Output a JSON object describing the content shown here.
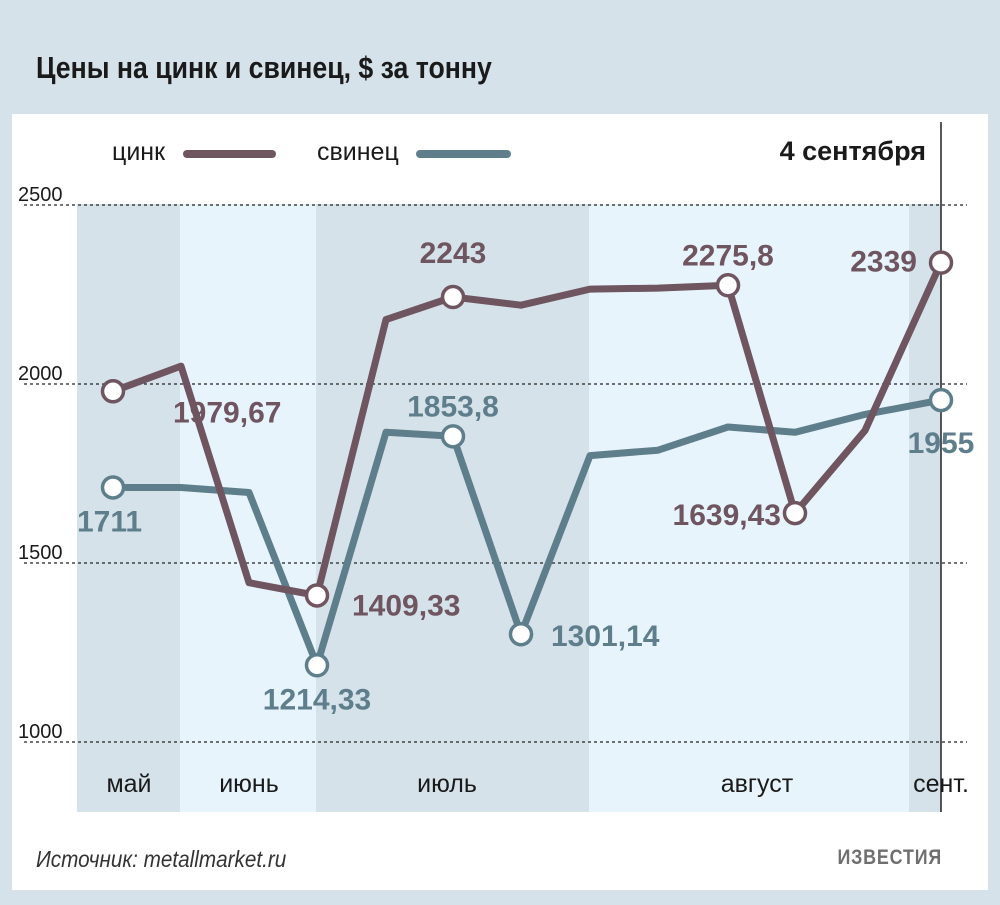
{
  "title": "Цены на цинк и свинец, $ за тонну",
  "source": "Источник: metallmarket.ru",
  "logo": "ИЗВЕСТИЯ",
  "colors": {
    "zinc": "#6e5560",
    "lead": "#5f7e8c",
    "band_dark": "#d6e2ea",
    "band_light": "#e8f4fb",
    "background": "#d5e2ea"
  },
  "chart_data": {
    "type": "line",
    "date_marker": "4 сентября",
    "ylim": [
      1000,
      2500
    ],
    "yticks": [
      "2500",
      "2000",
      "1500",
      "1000"
    ],
    "months": [
      "май",
      "июнь",
      "июль",
      "август",
      "сент."
    ],
    "grid": "dashed horizontal",
    "legend": "top-left",
    "series": [
      {
        "name": "цинк",
        "color": "#6e5560",
        "values": [
          1979.67,
          2050,
          1445,
          1409.33,
          2180,
          2243,
          2220,
          2265,
          2268,
          2275.8,
          1639.43,
          1870,
          2339
        ],
        "labels": [
          {
            "index": 0,
            "text": "1979,67"
          },
          {
            "index": 3,
            "text": "1409,33"
          },
          {
            "index": 5,
            "text": "2243"
          },
          {
            "index": 9,
            "text": "2275,8"
          },
          {
            "index": 10,
            "text": "1639,43"
          },
          {
            "index": 12,
            "text": "2339"
          }
        ]
      },
      {
        "name": "свинец",
        "color": "#5f7e8c",
        "values": [
          1711,
          1711,
          1697,
          1214.33,
          1865,
          1853.8,
          1301.14,
          1800,
          1815,
          1880,
          1865,
          1915,
          1955
        ],
        "labels": [
          {
            "index": 0,
            "text": "1711"
          },
          {
            "index": 3,
            "text": "1214,33"
          },
          {
            "index": 5,
            "text": "1853,8"
          },
          {
            "index": 6,
            "text": "1301,14"
          },
          {
            "index": 12,
            "text": "1955"
          }
        ]
      }
    ]
  }
}
